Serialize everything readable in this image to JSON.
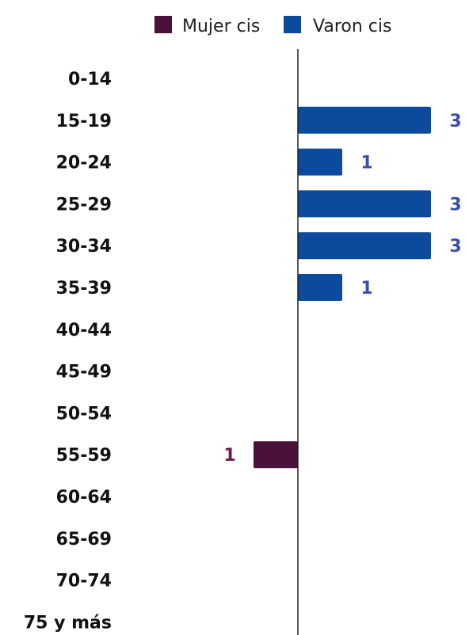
{
  "chart_data": {
    "type": "bar",
    "orientation": "horizontal",
    "diverging": true,
    "categories": [
      "0-14",
      "15-19",
      "20-24",
      "25-29",
      "30-34",
      "35-39",
      "40-44",
      "45-49",
      "50-54",
      "55-59",
      "60-64",
      "65-69",
      "70-74",
      "75 y más"
    ],
    "series": [
      {
        "name": "Mujer cis",
        "color": "#4a1238",
        "side": "left",
        "values": [
          0,
          0,
          0,
          0,
          0,
          0,
          0,
          0,
          0,
          1,
          0,
          0,
          0,
          0
        ]
      },
      {
        "name": "Varon cis",
        "color": "#0b4a9c",
        "side": "right",
        "values": [
          0,
          3,
          1,
          3,
          3,
          1,
          0,
          0,
          0,
          0,
          0,
          0,
          0,
          0
        ]
      }
    ],
    "label_colors": {
      "Mujer cis": "#6b1d4f",
      "Varon cis": "#3b4fa8"
    },
    "legend_position": "top",
    "grid": false
  }
}
